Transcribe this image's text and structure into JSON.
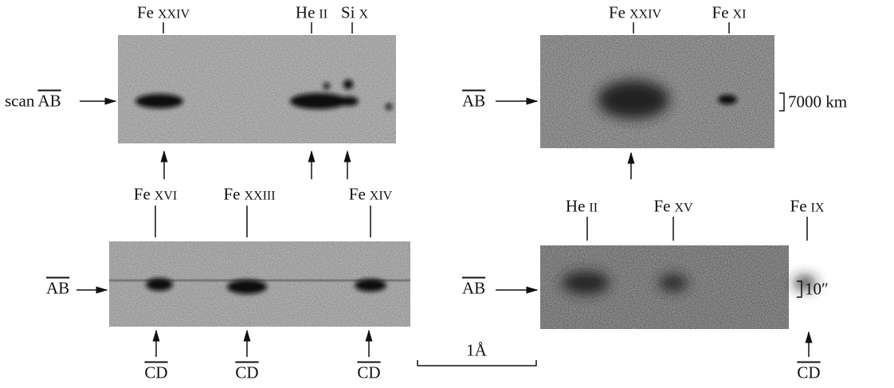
{
  "panels": [
    {
      "lines": [
        {
          "element": "Fe",
          "ion": "XXIV"
        },
        {
          "element": "He",
          "ion": "II"
        },
        {
          "element": "Si",
          "ion": "X"
        }
      ],
      "scan_prefix": "scan",
      "scan_label": "AB"
    },
    {
      "lines": [
        {
          "element": "Fe",
          "ion": "XXIV"
        },
        {
          "element": "Fe",
          "ion": "XI"
        }
      ],
      "scan_label": "AB",
      "scale": "7000 km"
    },
    {
      "lines": [
        {
          "element": "Fe",
          "ion": "XVI"
        },
        {
          "element": "Fe",
          "ion": "XXIII"
        },
        {
          "element": "Fe",
          "ion": "XIV"
        }
      ],
      "scan_label": "AB",
      "cut_labels": [
        "CD",
        "CD",
        "CD"
      ]
    },
    {
      "lines": [
        {
          "element": "He",
          "ion": "II"
        },
        {
          "element": "Fe",
          "ion": "XV"
        },
        {
          "element": "Fe",
          "ion": "IX"
        }
      ],
      "scan_label": "AB",
      "scale": "10″",
      "cut_labels": [
        "CD"
      ]
    }
  ],
  "scale_bar": "1Å"
}
